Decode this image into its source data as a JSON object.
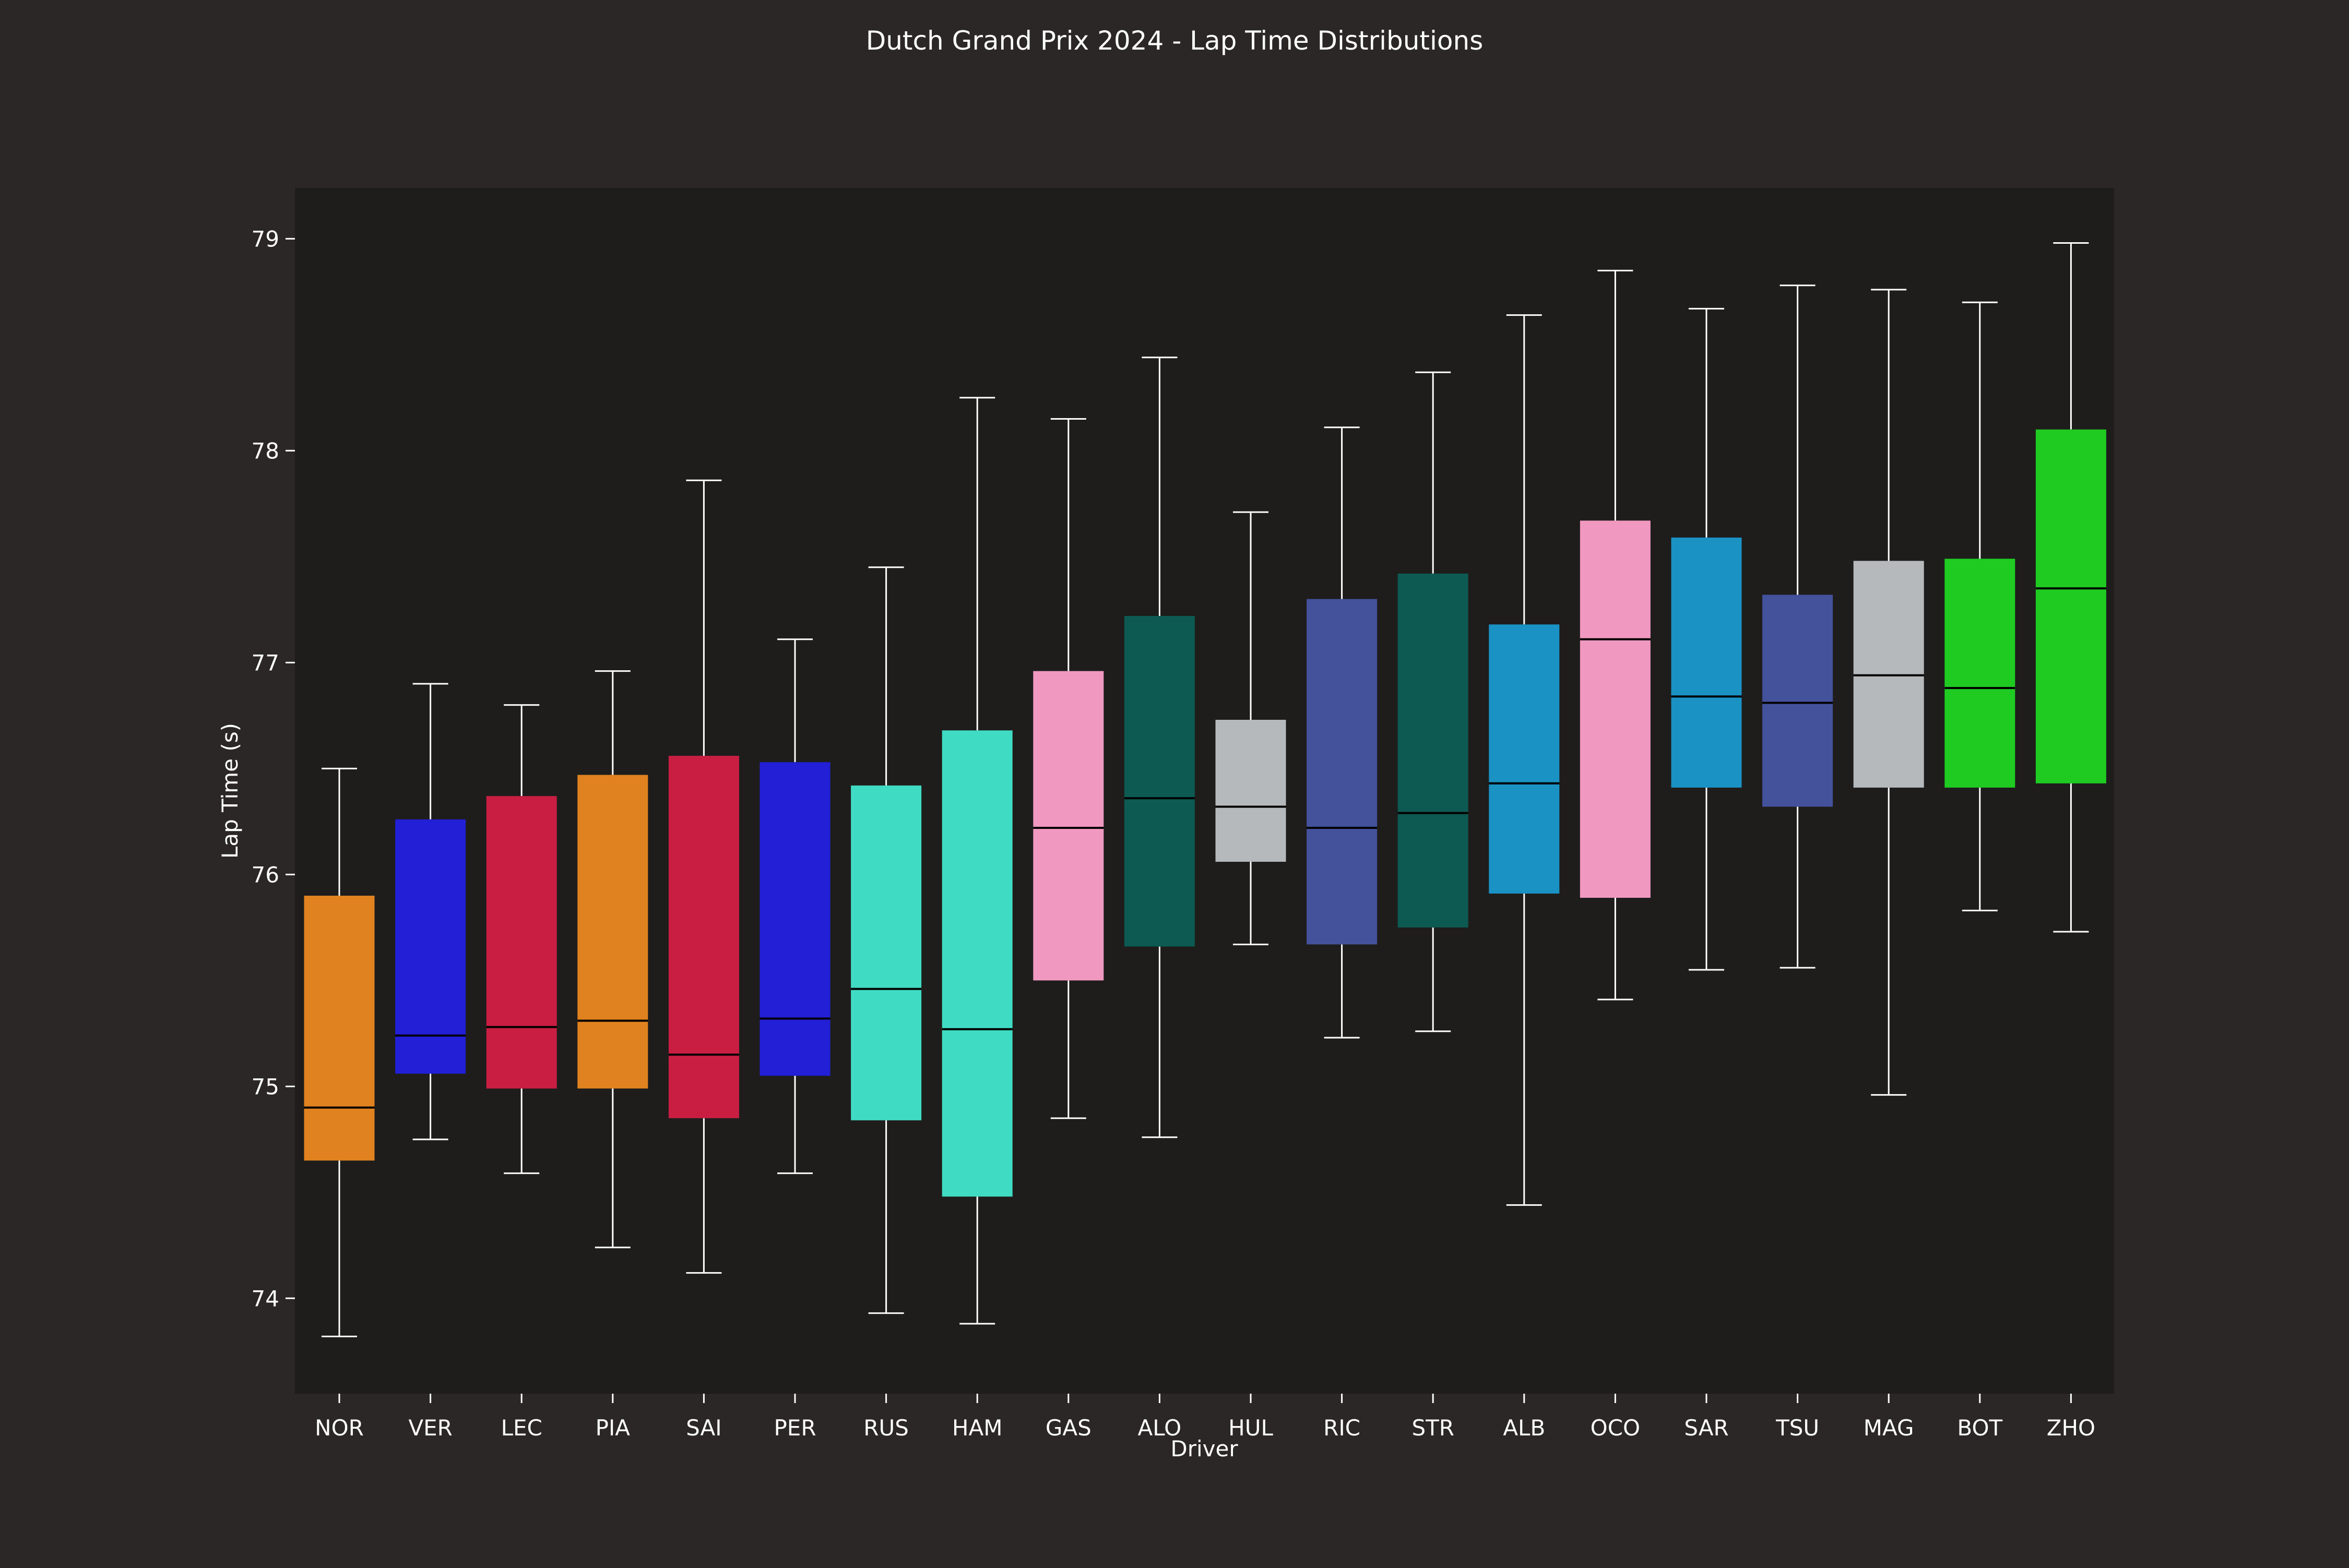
{
  "chart_data": {
    "type": "box",
    "title": "Dutch Grand Prix 2024 - Lap Time Distributions",
    "xlabel": "Driver",
    "ylabel": "Lap Time (s)",
    "ylim": [
      73.55,
      79.24
    ],
    "yticks": [
      74,
      75,
      76,
      77,
      78,
      79
    ],
    "grid": false,
    "legend": "none",
    "drivers": [
      {
        "name": "NOR",
        "color": "#e0821f",
        "whisker_low": 73.82,
        "q1": 74.65,
        "median": 74.9,
        "q3": 75.9,
        "whisker_high": 76.5
      },
      {
        "name": "VER",
        "color": "#221fd6",
        "whisker_low": 74.75,
        "q1": 75.06,
        "median": 75.24,
        "q3": 76.26,
        "whisker_high": 76.9
      },
      {
        "name": "LEC",
        "color": "#c91e42",
        "whisker_low": 74.59,
        "q1": 74.99,
        "median": 75.28,
        "q3": 76.37,
        "whisker_high": 76.8
      },
      {
        "name": "PIA",
        "color": "#e0821f",
        "whisker_low": 74.24,
        "q1": 74.99,
        "median": 75.31,
        "q3": 76.47,
        "whisker_high": 76.96
      },
      {
        "name": "SAI",
        "color": "#c91e42",
        "whisker_low": 74.12,
        "q1": 74.85,
        "median": 75.15,
        "q3": 76.56,
        "whisker_high": 77.86
      },
      {
        "name": "PER",
        "color": "#221fd6",
        "whisker_low": 74.59,
        "q1": 75.05,
        "median": 75.32,
        "q3": 76.53,
        "whisker_high": 77.11
      },
      {
        "name": "RUS",
        "color": "#40dbc3",
        "whisker_low": 73.93,
        "q1": 74.84,
        "median": 75.46,
        "q3": 76.42,
        "whisker_high": 77.45
      },
      {
        "name": "HAM",
        "color": "#40dbc3",
        "whisker_low": 73.88,
        "q1": 74.48,
        "median": 75.27,
        "q3": 76.68,
        "whisker_high": 78.25
      },
      {
        "name": "GAS",
        "color": "#f098c0",
        "whisker_low": 74.85,
        "q1": 75.5,
        "median": 76.22,
        "q3": 76.96,
        "whisker_high": 78.15
      },
      {
        "name": "ALO",
        "color": "#0d5a52",
        "whisker_low": 74.76,
        "q1": 75.66,
        "median": 76.36,
        "q3": 77.22,
        "whisker_high": 78.44
      },
      {
        "name": "HUL",
        "color": "#b6b9bb",
        "whisker_low": 75.67,
        "q1": 76.06,
        "median": 76.32,
        "q3": 76.73,
        "whisker_high": 77.71
      },
      {
        "name": "RIC",
        "color": "#44529c",
        "whisker_low": 75.23,
        "q1": 75.67,
        "median": 76.22,
        "q3": 77.3,
        "whisker_high": 78.11
      },
      {
        "name": "STR",
        "color": "#0d5a52",
        "whisker_low": 75.26,
        "q1": 75.75,
        "median": 76.29,
        "q3": 77.42,
        "whisker_high": 78.37
      },
      {
        "name": "ALB",
        "color": "#1b92c4",
        "whisker_low": 74.44,
        "q1": 75.91,
        "median": 76.43,
        "q3": 77.18,
        "whisker_high": 78.64
      },
      {
        "name": "OCO",
        "color": "#f098c0",
        "whisker_low": 75.41,
        "q1": 75.89,
        "median": 77.11,
        "q3": 77.67,
        "whisker_high": 78.85
      },
      {
        "name": "SAR",
        "color": "#1b92c4",
        "whisker_low": 75.55,
        "q1": 76.41,
        "median": 76.84,
        "q3": 77.59,
        "whisker_high": 78.67
      },
      {
        "name": "TSU",
        "color": "#44529c",
        "whisker_low": 75.56,
        "q1": 76.32,
        "median": 76.81,
        "q3": 77.32,
        "whisker_high": 78.78
      },
      {
        "name": "MAG",
        "color": "#b6b9bb",
        "whisker_low": 74.96,
        "q1": 76.41,
        "median": 76.94,
        "q3": 77.48,
        "whisker_high": 78.76
      },
      {
        "name": "BOT",
        "color": "#1fcb21",
        "whisker_low": 75.83,
        "q1": 76.41,
        "median": 76.88,
        "q3": 77.49,
        "whisker_high": 78.7
      },
      {
        "name": "ZHO",
        "color": "#1fcb21",
        "whisker_low": 75.73,
        "q1": 76.43,
        "median": 77.35,
        "q3": 78.1,
        "whisker_high": 78.98
      }
    ],
    "colors": {
      "figure_background": "#2a2726",
      "plot_background": "#1e1d1c",
      "whisker": "#ffffff",
      "median": "#000000",
      "text": "#ffffff"
    }
  }
}
